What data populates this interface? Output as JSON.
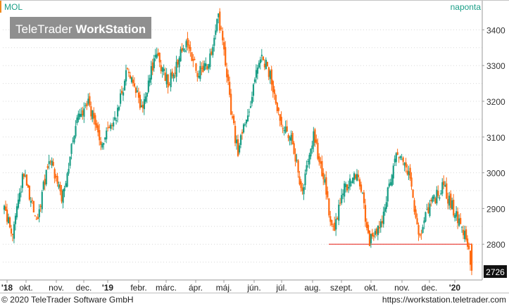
{
  "chart_data": {
    "type": "candlestick",
    "symbol": "MOL",
    "period_label": "naponta",
    "watermark": {
      "brand": "TeleTrader",
      "product": "WorkStation"
    },
    "ylim": [
      2700,
      3450
    ],
    "y_ticks": [
      2800,
      2900,
      3000,
      3100,
      3200,
      3300,
      3400
    ],
    "x_ticks": [
      "'18",
      "okt.",
      "nov.",
      "dec.",
      "'19",
      "febr.",
      "márc.",
      "ápr.",
      "máj.",
      "jún.",
      "júl.",
      "aug.",
      "szept.",
      "okt.",
      "nov.",
      "dec.",
      "'20"
    ],
    "support_level": 2800,
    "last_price": "2726",
    "colors": {
      "up": "#1a9e86",
      "down": "#ff6a10",
      "support": "#e8322a",
      "grid": "#d8d8d8",
      "label": "#1a9e86"
    },
    "close_path": [
      [
        "2018-09-03",
        2900
      ],
      [
        "2018-09-12",
        2820
      ],
      [
        "2018-09-25",
        3010
      ],
      [
        "2018-10-08",
        2850
      ],
      [
        "2018-10-22",
        3050
      ],
      [
        "2018-11-05",
        2920
      ],
      [
        "2018-11-20",
        3140
      ],
      [
        "2018-12-03",
        3200
      ],
      [
        "2018-12-17",
        3090
      ],
      [
        "2019-01-02",
        3140
      ],
      [
        "2019-01-15",
        3280
      ],
      [
        "2019-02-01",
        3180
      ],
      [
        "2019-02-15",
        3330
      ],
      [
        "2019-03-01",
        3250
      ],
      [
        "2019-03-20",
        3360
      ],
      [
        "2019-04-02",
        3280
      ],
      [
        "2019-04-15",
        3310
      ],
      [
        "2019-04-25",
        3440
      ],
      [
        "2019-05-03",
        3310
      ],
      [
        "2019-05-10",
        3150
      ],
      [
        "2019-05-16",
        3060
      ],
      [
        "2019-05-30",
        3200
      ],
      [
        "2019-06-10",
        3330
      ],
      [
        "2019-06-20",
        3280
      ],
      [
        "2019-07-01",
        3160
      ],
      [
        "2019-07-16",
        3080
      ],
      [
        "2019-07-25",
        2940
      ],
      [
        "2019-08-07",
        3100
      ],
      [
        "2019-08-20",
        2960
      ],
      [
        "2019-08-28",
        2830
      ],
      [
        "2019-09-10",
        2960
      ],
      [
        "2019-09-25",
        3000
      ],
      [
        "2019-10-07",
        2810
      ],
      [
        "2019-10-21",
        2860
      ],
      [
        "2019-11-05",
        3060
      ],
      [
        "2019-11-18",
        3010
      ],
      [
        "2019-12-02",
        2810
      ],
      [
        "2019-12-10",
        2900
      ],
      [
        "2019-12-27",
        2960
      ],
      [
        "2020-01-10",
        2880
      ],
      [
        "2020-01-20",
        2826
      ],
      [
        "2020-01-27",
        2726
      ]
    ]
  },
  "footer": {
    "copyright": "© 2020 TeleTrader Software GmbH",
    "url": "https://workstation.teletrader.com"
  }
}
